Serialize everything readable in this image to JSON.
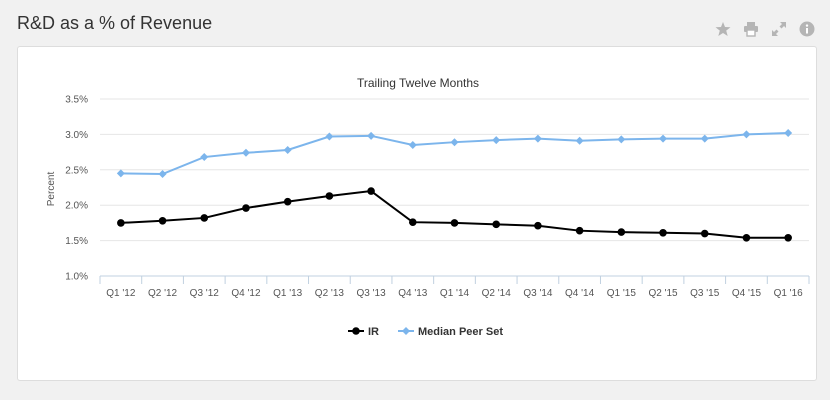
{
  "header": {
    "title": "R&D as a % of Revenue"
  },
  "toolbar": {
    "icons": [
      "star-icon",
      "print-icon",
      "expand-icon",
      "info-icon"
    ],
    "icon_color": "#b5b5b5"
  },
  "chart_data": {
    "type": "line",
    "title": "Trailing Twelve Months",
    "xlabel": "",
    "ylabel": "Percent",
    "ylim": [
      1.0,
      3.5
    ],
    "yticks": [
      "1.0%",
      "1.5%",
      "2.0%",
      "2.5%",
      "3.0%",
      "3.5%"
    ],
    "ytick_values": [
      1.0,
      1.5,
      2.0,
      2.5,
      3.0,
      3.5
    ],
    "grid": true,
    "legend_position": "bottom",
    "categories": [
      "Q1 '12",
      "Q2 '12",
      "Q3 '12",
      "Q4 '12",
      "Q1 '13",
      "Q2 '13",
      "Q3 '13",
      "Q4 '13",
      "Q1 '14",
      "Q2 '14",
      "Q3 '14",
      "Q4 '14",
      "Q1 '15",
      "Q2 '15",
      "Q3 '15",
      "Q4 '15",
      "Q1 '16"
    ],
    "series": [
      {
        "name": "IR",
        "color": "#000000",
        "marker": "circle",
        "values": [
          1.75,
          1.78,
          1.82,
          1.96,
          2.05,
          2.13,
          2.2,
          1.76,
          1.75,
          1.73,
          1.71,
          1.64,
          1.62,
          1.61,
          1.6,
          1.54,
          1.54
        ]
      },
      {
        "name": "Median Peer Set",
        "color": "#7cb5ec",
        "marker": "diamond",
        "values": [
          2.45,
          2.44,
          2.68,
          2.74,
          2.78,
          2.97,
          2.98,
          2.85,
          2.89,
          2.92,
          2.94,
          2.91,
          2.93,
          2.94,
          2.94,
          3.0,
          3.02
        ]
      }
    ]
  }
}
